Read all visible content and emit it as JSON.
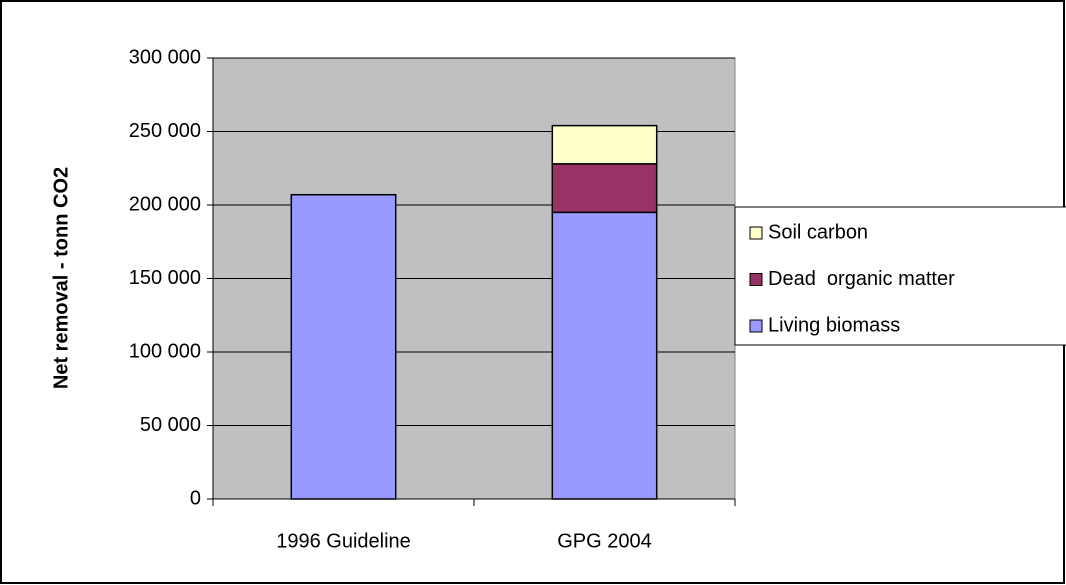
{
  "chart_data": {
    "type": "stacked_bar",
    "y_label": "Net removal - tonn CO2",
    "categories": [
      "1996 Guideline",
      "GPG 2004"
    ],
    "series": [
      {
        "name": "Living biomass",
        "color": "#9999ff",
        "values": [
          207000,
          195000
        ]
      },
      {
        "name": "Dead  organic matter",
        "color": "#993366",
        "values": [
          null,
          33000
        ]
      },
      {
        "name": "Soil carbon",
        "color": "#ffffcc",
        "values": [
          null,
          26000
        ]
      }
    ],
    "ylim": [
      0,
      300000
    ],
    "yticks": [
      0,
      {
        "value": 50000,
        "label": "50 000"
      },
      {
        "value": 100000,
        "label": "100 000"
      },
      {
        "value": 150000,
        "label": "150 000"
      },
      {
        "value": 200000,
        "label": "200 000"
      },
      {
        "value": 250000,
        "label": "250 000"
      },
      {
        "value": 300000,
        "label": "300 000"
      }
    ],
    "grid": true,
    "legend": "right",
    "background": "#c0c0c0"
  }
}
